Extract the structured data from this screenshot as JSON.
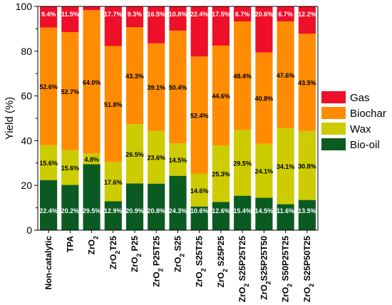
{
  "chart_data": {
    "type": "bar",
    "stacked": true,
    "ylabel": "Yield (%)",
    "ylim": [
      0,
      100
    ],
    "yticks": [
      0,
      20,
      40,
      60,
      80,
      100
    ],
    "grid": false,
    "legend_position": "right",
    "categories": [
      {
        "base": "Non-catalytic",
        "sub": "",
        "rest": ""
      },
      {
        "base": "TPA",
        "sub": "",
        "rest": ""
      },
      {
        "base": "ZrO",
        "sub": "2",
        "rest": ""
      },
      {
        "base": "ZrO",
        "sub": "2",
        "rest": "T25"
      },
      {
        "base": "ZrO",
        "sub": "2",
        "rest": " P25"
      },
      {
        "base": "ZrO",
        "sub": "2",
        "rest": " P25T25"
      },
      {
        "base": "ZrO",
        "sub": "2",
        "rest": " S25"
      },
      {
        "base": "ZrO",
        "sub": "2",
        "rest": " S25T25"
      },
      {
        "base": "ZrO",
        "sub": "2",
        "rest": " S25P25"
      },
      {
        "base": "ZrO",
        "sub": "2",
        "rest": " S25P25T25"
      },
      {
        "base": "ZrO",
        "sub": "2",
        "rest": "S25P25T50"
      },
      {
        "base": "ZrO",
        "sub": "2",
        "rest": " S50P25T25"
      },
      {
        "base": "ZrO",
        "sub": "2",
        "rest": " S25P50T25"
      }
    ],
    "series": [
      {
        "name": "Bio-oil",
        "color": "#0b5a22",
        "label_color": "#ffffff",
        "values": [
          22.4,
          20.2,
          29.5,
          12.9,
          20.9,
          20.8,
          24.3,
          10.6,
          12.6,
          15.4,
          14.5,
          11.6,
          13.5
        ],
        "labels": [
          "22.4%",
          "20.2%",
          "29.5%",
          "12.9%",
          "20.9%",
          "20.8%",
          "24.3%",
          "10.6%",
          "12.6%",
          "15.4%",
          "14.5%",
          "11.6%",
          "13.5%"
        ]
      },
      {
        "name": "Wax",
        "color": "#cccc00",
        "label_color": "#000000",
        "values": [
          15.6,
          15.6,
          4.8,
          17.6,
          26.5,
          23.6,
          14.5,
          14.6,
          25.3,
          29.5,
          24.1,
          34.1,
          30.8
        ],
        "labels": [
          "15.6%",
          "15.6%",
          "4.8%",
          "17.6%",
          "26.5%",
          "23.6%",
          "14.5%",
          "14.6%",
          "25.3%",
          "29.5%",
          "24.1%",
          "34.1%",
          "30.8%"
        ]
      },
      {
        "name": "Biochar",
        "color": "#ff8c00",
        "label_color": "#000000",
        "values": [
          52.6,
          52.7,
          64.0,
          51.8,
          43.3,
          39.1,
          50.4,
          52.4,
          44.6,
          48.4,
          40.8,
          47.6,
          43.5
        ],
        "labels": [
          "52.6%",
          "52.7%",
          "64.0%",
          "51.8%",
          "43.3%",
          "39.1%",
          "50.4%",
          "52.4%",
          "44.6%",
          "48.4%",
          "40.8%",
          "47.6%",
          "43.5%"
        ]
      },
      {
        "name": "Gas",
        "color": "#ee0f28",
        "label_color": "#ffffff",
        "values": [
          9.4,
          11.5,
          1.7,
          17.7,
          9.3,
          16.5,
          10.8,
          22.4,
          17.5,
          6.7,
          20.6,
          6.7,
          12.2
        ],
        "labels": [
          "9.4%",
          "11.5%",
          "",
          "17.7%",
          "9.3%",
          "16.5%",
          "10.8%",
          "22.4%",
          "17.5%",
          "6.7%",
          "20.6%",
          "6.7%",
          "12.2%"
        ]
      }
    ],
    "legend_order": [
      "Gas",
      "Biochar",
      "Wax",
      "Bio-oil"
    ]
  }
}
